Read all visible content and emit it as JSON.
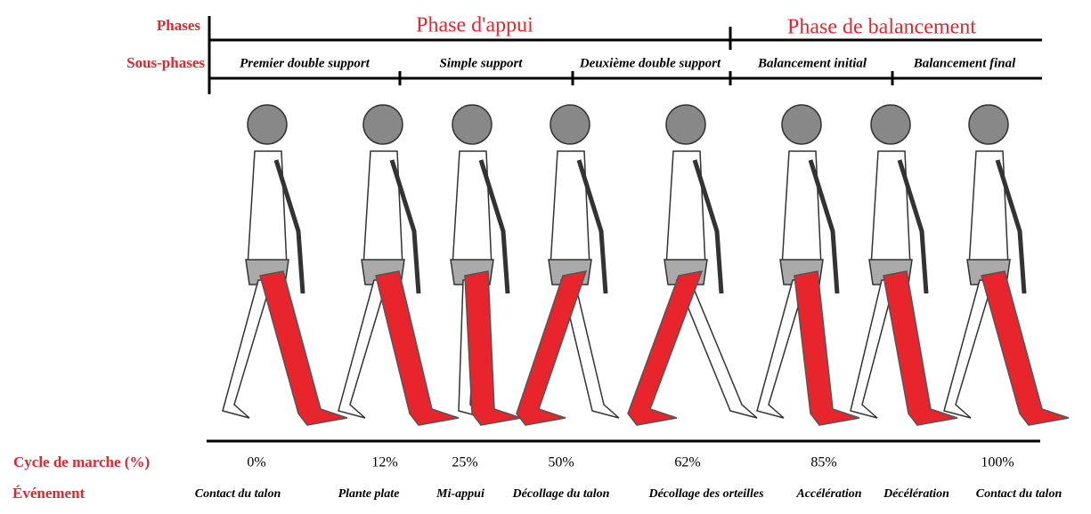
{
  "row_labels": {
    "phases": "Phases",
    "subphases": "Sous-phases",
    "cycle": "Cycle de marche (%)",
    "event": "Événement"
  },
  "phases": [
    "Phase d'appui",
    "Phase de balancement"
  ],
  "subphases": [
    "Premier double support",
    "Simple support",
    "Deuxième double support",
    "Balancement initial",
    "Balancement final"
  ],
  "cycle": [
    "0%",
    "12%",
    "25%",
    "50%",
    "62%",
    "85%",
    "100%"
  ],
  "events": [
    "Contact du talon",
    "Plante plate",
    "Mi-appui",
    "Décollage du talon",
    "Décollage des orteilles",
    "Accélération",
    "Décélération",
    "Contact du talon"
  ]
}
